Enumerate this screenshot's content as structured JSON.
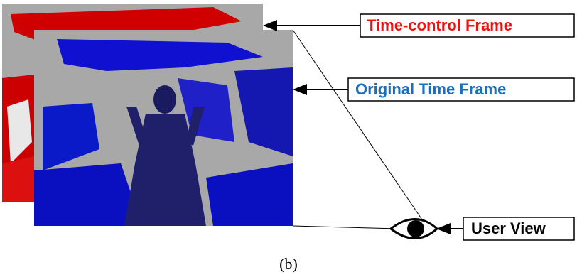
{
  "labels": {
    "time_control": "Time-control Frame",
    "original": "Original Time Frame",
    "user_view": "User View"
  },
  "caption": "(b)"
}
